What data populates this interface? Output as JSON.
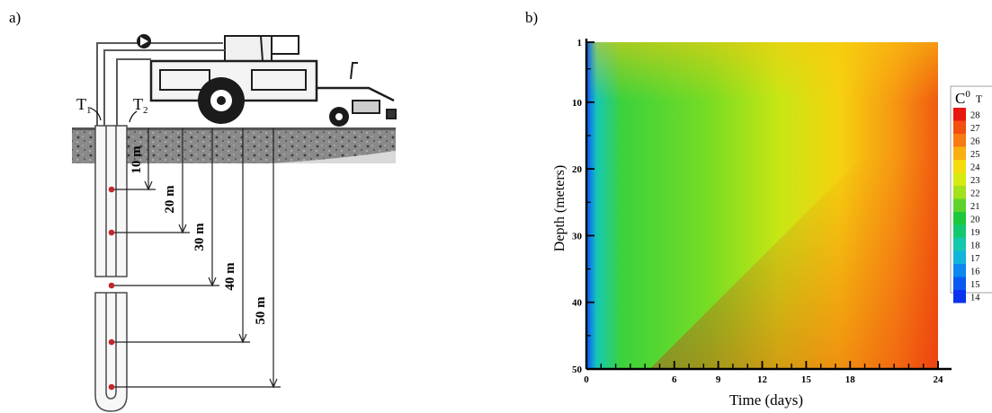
{
  "panel_a": {
    "label": "a)",
    "t1": "T",
    "t1_sub": "1",
    "t2": "T",
    "t2_sub": "2",
    "depth_labels": [
      "10 m",
      "20 m",
      "30 m",
      "40 m",
      "50 m"
    ],
    "sensor_depths_m": [
      10,
      20,
      30,
      40,
      50
    ],
    "sensor_color": "#c0282d"
  },
  "panel_b": {
    "label": "b)",
    "legend_title": "C",
    "legend_title_sup": "0",
    "legend_title_extra": "T",
    "legend_ticks": [
      "28",
      "27",
      "26",
      "25",
      "24",
      "23",
      "22",
      "21",
      "20",
      "19",
      "18",
      "17",
      "16",
      "15",
      "14"
    ],
    "legend_colors": [
      "#e8170f",
      "#f24f10",
      "#f77a12",
      "#f9b00f",
      "#f5dc0c",
      "#d6ea0f",
      "#a4e01b",
      "#5fd22d",
      "#1ec83c",
      "#14c871",
      "#14c8ae",
      "#12b4dc",
      "#0c88f0",
      "#0a5af0",
      "#0a32f0"
    ]
  },
  "chart_data": {
    "type": "heatmap",
    "title": "",
    "xlabel": "Time (days)",
    "ylabel": "Depth (meters)",
    "xlim": [
      0,
      24
    ],
    "ylim": [
      50,
      1
    ],
    "x_ticks": [
      0,
      6,
      9,
      12,
      15,
      18,
      24
    ],
    "y_ticks": [
      1,
      10,
      20,
      30,
      40,
      50
    ],
    "value_unit": "C",
    "value_range": [
      14,
      28
    ],
    "legend_placement": "right",
    "grid": false
  }
}
